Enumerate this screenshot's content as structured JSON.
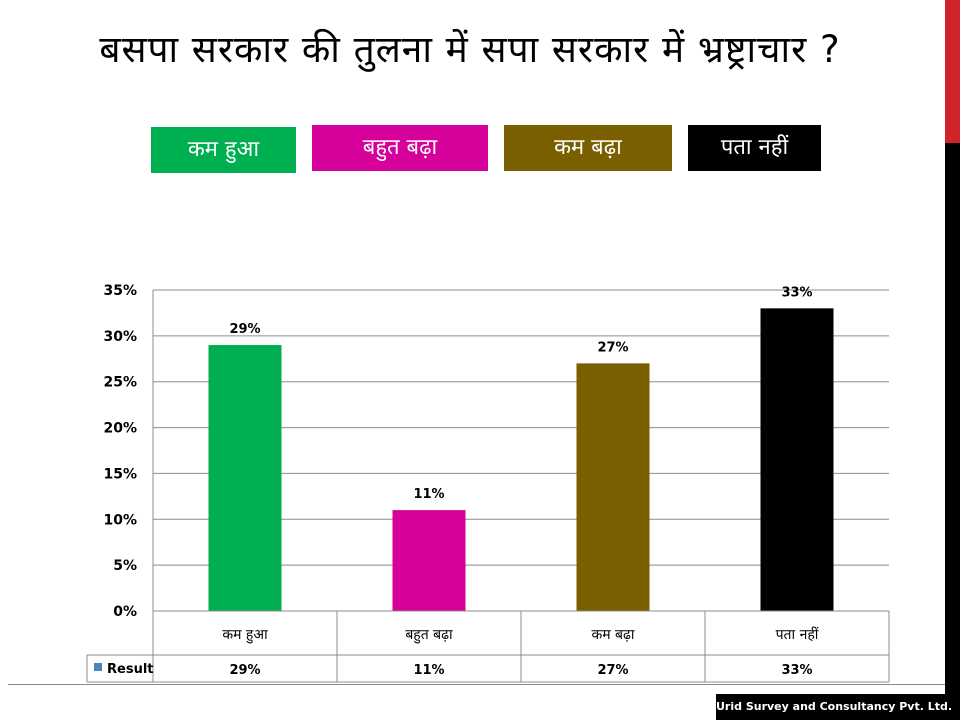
{
  "title": "बसपा सरकार की तुलना में सपा सरकार में भ्रष्ट्राचार ?",
  "legend": [
    {
      "label": "कम हुआ",
      "color": "#00b050"
    },
    {
      "label": "बहुत बढ़ा",
      "color": "#d6009b"
    },
    {
      "label": "कम बढ़ा",
      "color": "#7a5f00"
    },
    {
      "label": "पता नहीं",
      "color": "#000000"
    }
  ],
  "chart_data": {
    "type": "bar",
    "categories": [
      "कम हुआ",
      "बहुत बढ़ा",
      "कम बढ़ा",
      "पता नहीं"
    ],
    "series": [
      {
        "name": "Result",
        "values": [
          29,
          11,
          27,
          33
        ],
        "colors": [
          "#00b050",
          "#d6009b",
          "#7a5f00",
          "#000000"
        ]
      }
    ],
    "data_labels": [
      "29%",
      "11%",
      "27%",
      "33%"
    ],
    "ylim": [
      0,
      35
    ],
    "yticks": [
      "0%",
      "5%",
      "10%",
      "15%",
      "20%",
      "25%",
      "30%",
      "35%"
    ],
    "grid": true,
    "legend_position": "data-table",
    "table_row_label": "Result",
    "table_values": [
      "29%",
      "11%",
      "27%",
      "33%"
    ]
  },
  "footer": "Urid Survey and Consultancy Pvt. Ltd."
}
